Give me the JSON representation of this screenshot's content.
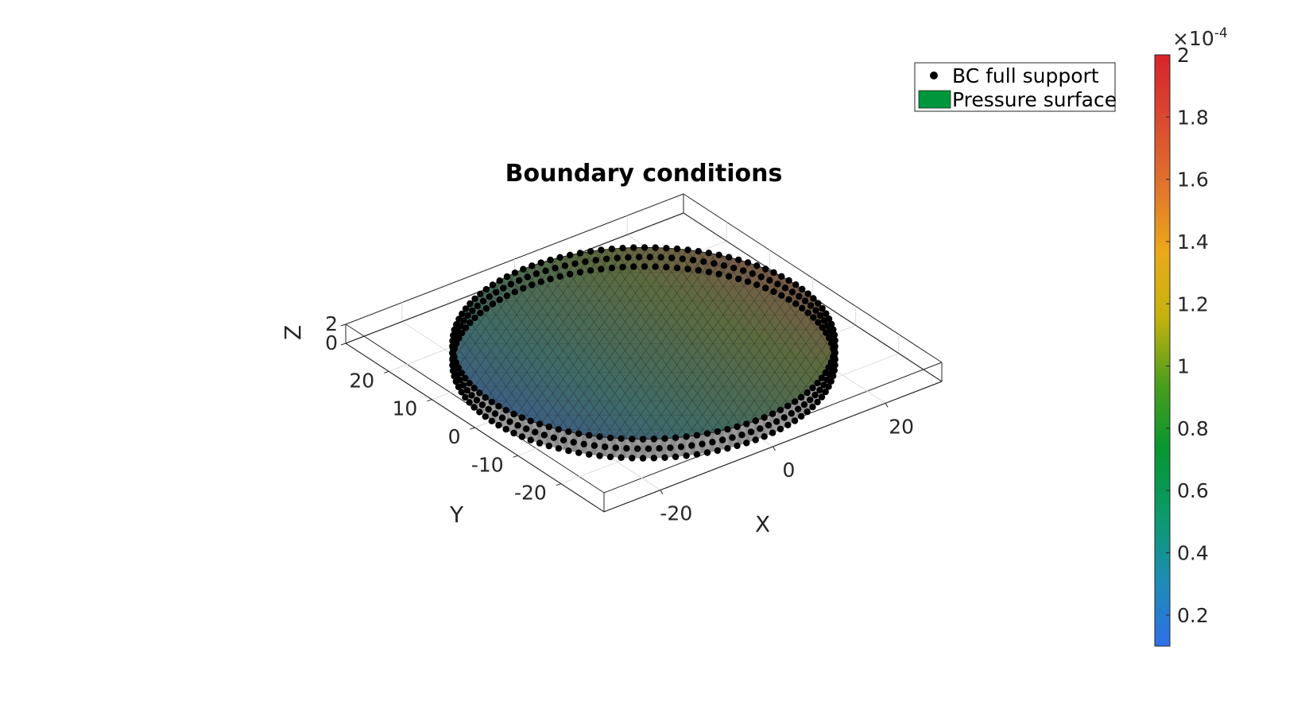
{
  "chart_data": {
    "type": "surface",
    "title": "Boundary conditions",
    "xlabel": "X",
    "ylabel": "Y",
    "zlabel": "Z",
    "x_ticks": [
      "-20",
      "0",
      "20"
    ],
    "y_ticks": [
      "-20",
      "-10",
      "0",
      "10",
      "20"
    ],
    "z_ticks": [
      "0",
      "2"
    ],
    "xlim": [
      -30,
      30
    ],
    "ylim": [
      -30,
      30
    ],
    "zlim": [
      0,
      2
    ],
    "grid": true,
    "legend": {
      "placement": "top-right",
      "entries": [
        {
          "label": "BC full support",
          "marker": "dot",
          "color": "#000000"
        },
        {
          "label": "Pressure surface",
          "marker": "patch",
          "color": "#00963C"
        }
      ]
    },
    "colorbar": {
      "exponent_label": "×10",
      "exponent": "-4",
      "ticks": [
        "0.2",
        "0.4",
        "0.6",
        "0.8",
        "1",
        "1.2",
        "1.4",
        "1.6",
        "1.8",
        "2"
      ],
      "tick_values": [
        0.2,
        0.4,
        0.6,
        0.8,
        1.0,
        1.2,
        1.4,
        1.6,
        1.8,
        2.0
      ],
      "range": [
        0.1,
        2.0
      ],
      "colormap": [
        "#2F6FE8",
        "#1E8CB4",
        "#0A9A6A",
        "#07962F",
        "#4C9E1C",
        "#C6B20E",
        "#EBA91A",
        "#E2742C",
        "#DA4A30",
        "#D7232A"
      ]
    },
    "disc": {
      "radius": 27,
      "height": 2,
      "surface_gradient": [
        "#3A5597",
        "#3F6B66",
        "#5C6B3E",
        "#934E50"
      ]
    }
  }
}
